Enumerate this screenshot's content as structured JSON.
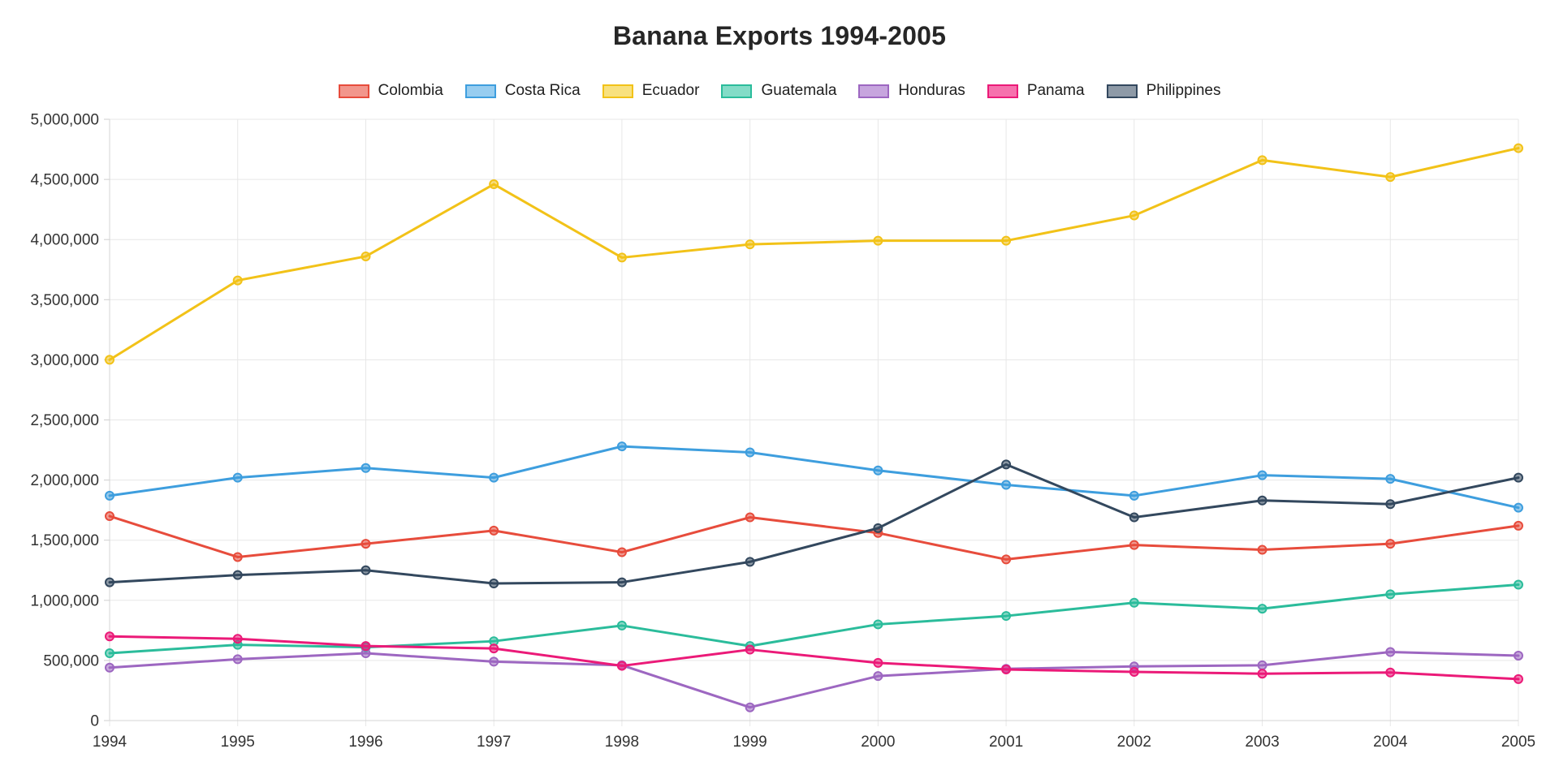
{
  "title": "Banana Exports 1994-2005",
  "chart_data": {
    "type": "line",
    "x": [
      "1994",
      "1995",
      "1996",
      "1997",
      "1998",
      "1999",
      "2000",
      "2001",
      "2002",
      "2003",
      "2004",
      "2005"
    ],
    "series": [
      {
        "name": "Colombia",
        "color": "#e74c3c",
        "fill": "#f2968c",
        "values": [
          1700000,
          1360000,
          1470000,
          1580000,
          1400000,
          1690000,
          1560000,
          1340000,
          1460000,
          1420000,
          1470000,
          1620000
        ]
      },
      {
        "name": "Costa Rica",
        "color": "#3e9ede",
        "fill": "#97cdf0",
        "values": [
          1870000,
          2020000,
          2100000,
          2020000,
          2280000,
          2230000,
          2080000,
          1960000,
          1870000,
          2040000,
          2010000,
          1770000
        ]
      },
      {
        "name": "Ecuador",
        "color": "#f2c218",
        "fill": "#f8e17f",
        "values": [
          3000000,
          3660000,
          3860000,
          4460000,
          3850000,
          3960000,
          3990000,
          3990000,
          4200000,
          4660000,
          4520000,
          4760000
        ]
      },
      {
        "name": "Guatemala",
        "color": "#2bbc9b",
        "fill": "#83dcc7",
        "values": [
          560000,
          630000,
          610000,
          660000,
          790000,
          620000,
          800000,
          870000,
          980000,
          930000,
          1050000,
          1130000
        ]
      },
      {
        "name": "Honduras",
        "color": "#9d67c1",
        "fill": "#c7a5de",
        "values": [
          440000,
          510000,
          560000,
          490000,
          460000,
          110000,
          370000,
          430000,
          450000,
          460000,
          570000,
          540000
        ]
      },
      {
        "name": "Panama",
        "color": "#eb1a78",
        "fill": "#f671ad",
        "values": [
          700000,
          680000,
          620000,
          600000,
          455000,
          590000,
          480000,
          425000,
          405000,
          390000,
          400000,
          345000
        ]
      },
      {
        "name": "Philippines",
        "color": "#33485e",
        "fill": "#8e9aa7",
        "values": [
          1150000,
          1210000,
          1250000,
          1140000,
          1150000,
          1320000,
          1600000,
          2130000,
          1690000,
          1830000,
          1800000,
          2020000
        ]
      }
    ],
    "title": "Banana Exports 1994-2005",
    "xlabel": "",
    "ylabel": "",
    "ylim": [
      0,
      5000000
    ],
    "ytick_step": 500000,
    "grid": true,
    "legend_position": "top"
  }
}
